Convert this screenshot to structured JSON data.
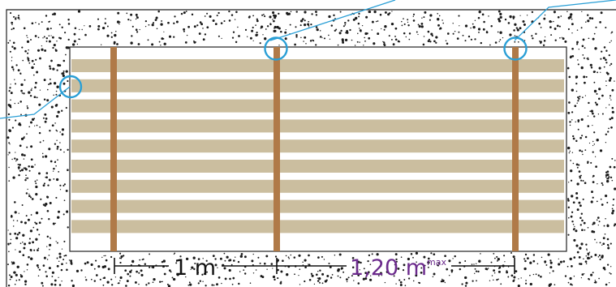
{
  "dimensions": {
    "span_left": "1 m",
    "span_right": "1,20 m",
    "span_right_suffix": "max"
  },
  "colors": {
    "background": "#ffffff",
    "gravel_dots": "#1a1a1a",
    "board": "#cbbe9f",
    "joist": "#b07a48",
    "outline": "#222222",
    "callout": "#2a9fd6",
    "dimension_line": "#111111",
    "dimension_text_left": "#111111",
    "dimension_text_right": "#6b2a8c"
  }
}
